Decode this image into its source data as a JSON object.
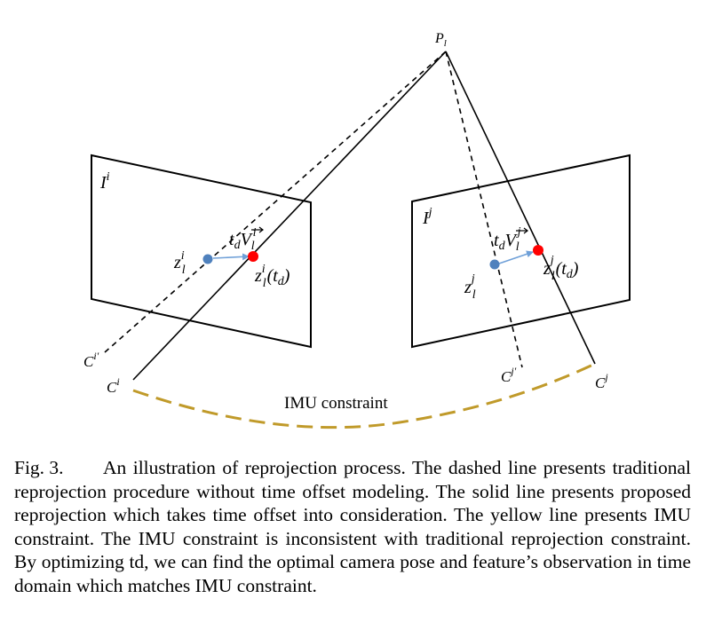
{
  "diagram": {
    "point_label": "P",
    "point_label_sub": "l",
    "image_i_label": "I",
    "image_i_sup": "i",
    "image_j_label": "I",
    "image_j_sup": "j",
    "obs_i_label": "z",
    "obs_i_sub": "l",
    "obs_i_sup": "i",
    "obs_i_td_label": "z",
    "obs_i_td_sub": "l",
    "obs_i_td_sup": "i",
    "obs_i_td_arg": "(t",
    "obs_i_td_arg_sub": "d",
    "obs_i_td_arg_close": ")",
    "vel_i_t": "t",
    "vel_i_t_sub": "d",
    "vel_i_V": "V",
    "vel_i_sub": "l",
    "vel_i_sup": "i",
    "obs_j_label": "z",
    "obs_j_sub": "l",
    "obs_j_sup": "j",
    "obs_j_td_label": "z",
    "obs_j_td_sub": "l",
    "obs_j_td_sup": "j",
    "obs_j_td_arg": "(t",
    "obs_j_td_arg_sub": "d",
    "obs_j_td_arg_close": ")",
    "vel_j_t": "t",
    "vel_j_t_sub": "d",
    "vel_j_V": "V",
    "vel_j_sub": "l",
    "vel_j_sup": "j",
    "cam_i_label": "C",
    "cam_i_sup": "i",
    "cam_i_prime_label": "C",
    "cam_i_prime_sup": "i′",
    "cam_j_label": "C",
    "cam_j_sup": "j",
    "cam_j_prime_label": "C",
    "cam_j_prime_sup": "j′",
    "imu_label": "IMU constraint",
    "colors": {
      "imu_curve": "#c09a2a",
      "observation_blue": "#4f81bd",
      "observation_red": "#ff0000",
      "velocity_arrow": "#6fa0d8"
    }
  },
  "caption": {
    "label": "Fig. 3.",
    "text": "An illustration of reprojection process. The dashed line presents traditional reprojection procedure without time offset modeling. The solid line presents proposed reprojection which takes time offset into consideration. The yellow line presents IMU constraint. The IMU constraint is inconsistent with traditional reprojection constraint. By optimizing td, we can find the optimal camera pose and feature’s observation in time domain which matches IMU constraint."
  }
}
